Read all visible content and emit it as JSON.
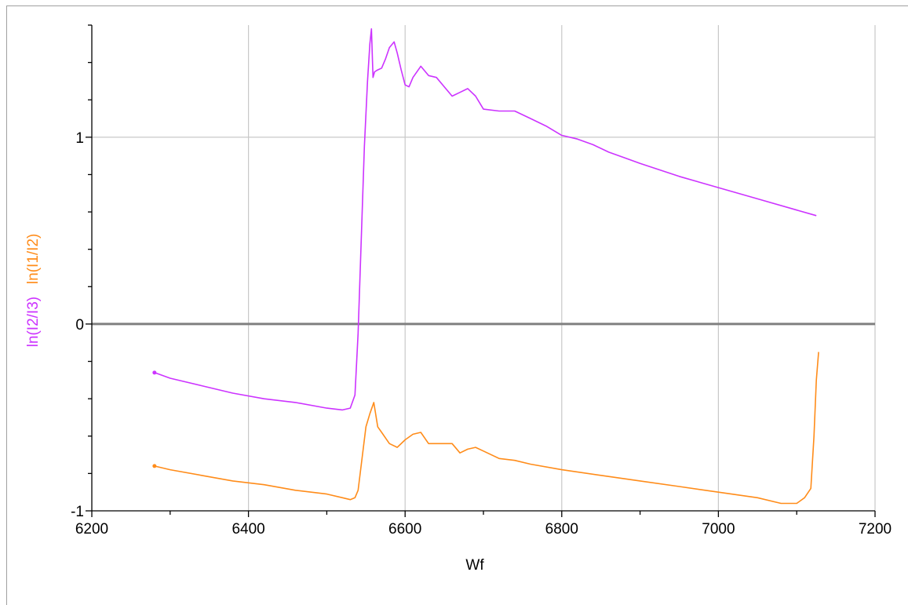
{
  "chart_data": {
    "type": "line",
    "title": "",
    "xlabel": "Wf",
    "ylabels": [
      {
        "text": "ln(I2/I3)",
        "color": "#cc33ff"
      },
      {
        "text": "ln(I1/I2)",
        "color": "#ff8c1a"
      }
    ],
    "xlim": [
      6200,
      7200
    ],
    "ylim": [
      -1,
      1.6
    ],
    "x_ticks": [
      6200,
      6400,
      6600,
      6800,
      7000,
      7200
    ],
    "x_tick_labels": [
      "6200",
      "6400",
      "6600",
      "6800",
      "7000",
      "7200"
    ],
    "y_ticks": [
      -1,
      0,
      1
    ],
    "y_tick_labels": [
      "-1",
      "0",
      "1"
    ],
    "grid": true,
    "zero_line": true,
    "series": [
      {
        "color": "#cc33ff",
        "x": [
          6280,
          6300,
          6340,
          6380,
          6420,
          6460,
          6500,
          6520,
          6530,
          6536,
          6540,
          6544,
          6548,
          6552,
          6555,
          6557,
          6559,
          6561,
          6565,
          6570,
          6575,
          6580,
          6586,
          6590,
          6595,
          6600,
          6605,
          6610,
          6620,
          6630,
          6640,
          6650,
          6660,
          6670,
          6680,
          6690,
          6700,
          6720,
          6740,
          6760,
          6780,
          6800,
          6820,
          6840,
          6860,
          6880,
          6900,
          6950,
          7000,
          7050,
          7100,
          7125
        ],
        "y": [
          -0.26,
          -0.29,
          -0.33,
          -0.37,
          -0.4,
          -0.42,
          -0.45,
          -0.46,
          -0.45,
          -0.38,
          -0.05,
          0.45,
          0.95,
          1.3,
          1.5,
          1.58,
          1.32,
          1.35,
          1.36,
          1.37,
          1.42,
          1.48,
          1.51,
          1.45,
          1.36,
          1.28,
          1.27,
          1.32,
          1.38,
          1.33,
          1.32,
          1.27,
          1.22,
          1.24,
          1.26,
          1.22,
          1.15,
          1.14,
          1.14,
          1.1,
          1.06,
          1.01,
          0.99,
          0.96,
          0.92,
          0.89,
          0.86,
          0.79,
          0.73,
          0.67,
          0.61,
          0.58
        ]
      },
      {
        "color": "#ff8c1a",
        "x": [
          6280,
          6300,
          6340,
          6380,
          6420,
          6460,
          6500,
          6520,
          6530,
          6536,
          6540,
          6545,
          6550,
          6555,
          6560,
          6565,
          6570,
          6580,
          6590,
          6600,
          6610,
          6620,
          6630,
          6640,
          6660,
          6670,
          6680,
          6690,
          6700,
          6720,
          6740,
          6760,
          6800,
          6850,
          6900,
          6950,
          7000,
          7050,
          7080,
          7100,
          7110,
          7118,
          7122,
          7125,
          7128
        ],
        "y": [
          -0.76,
          -0.78,
          -0.81,
          -0.84,
          -0.86,
          -0.89,
          -0.91,
          -0.93,
          -0.94,
          -0.93,
          -0.89,
          -0.72,
          -0.55,
          -0.48,
          -0.42,
          -0.55,
          -0.58,
          -0.64,
          -0.66,
          -0.62,
          -0.59,
          -0.58,
          -0.64,
          -0.64,
          -0.64,
          -0.69,
          -0.67,
          -0.66,
          -0.68,
          -0.72,
          -0.73,
          -0.75,
          -0.78,
          -0.81,
          -0.84,
          -0.87,
          -0.9,
          -0.93,
          -0.96,
          -0.96,
          -0.93,
          -0.88,
          -0.6,
          -0.3,
          -0.15
        ]
      }
    ]
  }
}
